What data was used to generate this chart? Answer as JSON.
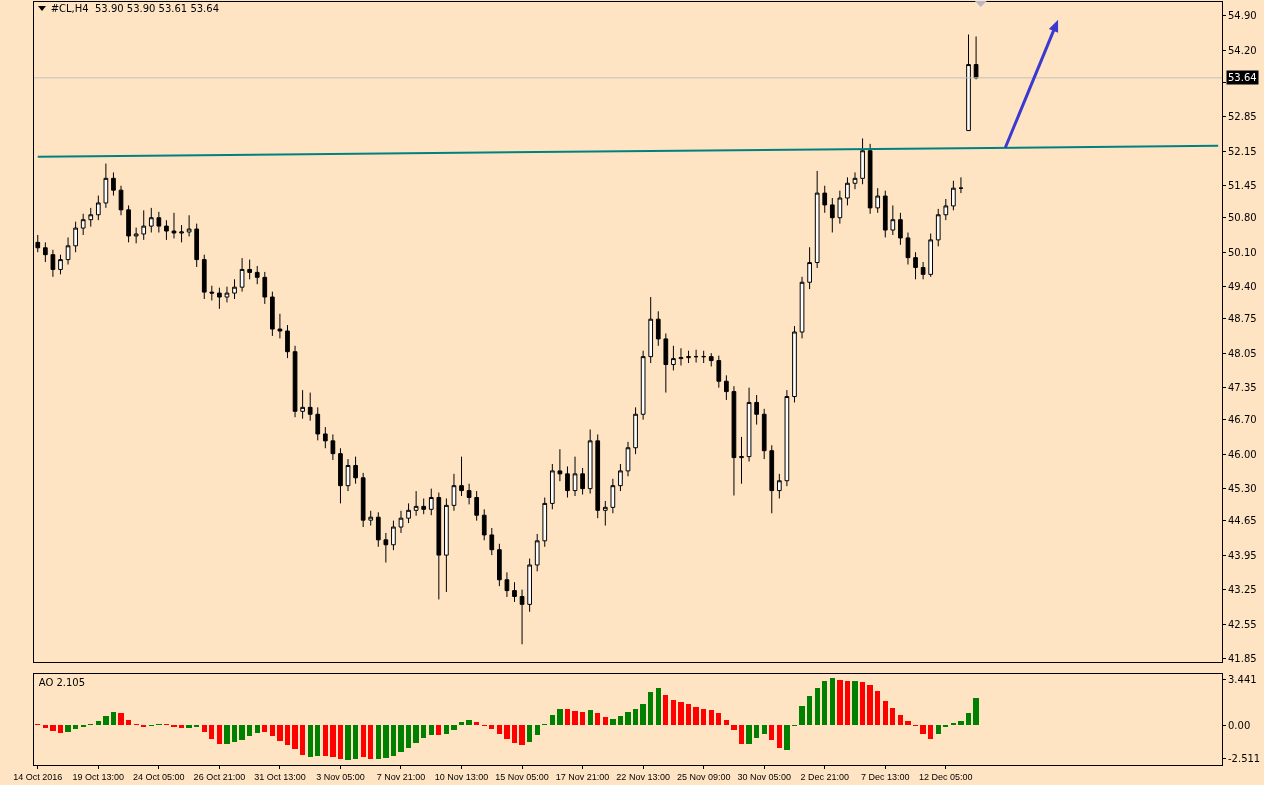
{
  "chart_data": [
    {
      "type": "candlestick",
      "title": "#CL,H4  53.90 53.90 53.61 53.64",
      "tick_labels": "y",
      "categories": [
        null,
        null,
        null,
        null,
        null,
        null,
        null,
        null,
        null,
        null,
        null,
        null,
        null,
        null,
        null,
        null,
        null,
        null,
        null,
        null,
        null,
        null,
        null,
        null,
        null,
        null,
        null,
        null,
        null,
        null,
        null,
        null,
        null,
        null,
        null,
        null,
        null,
        null,
        null,
        null,
        null,
        null,
        null,
        null,
        null,
        null,
        null,
        null,
        null,
        null,
        null,
        null,
        null,
        null,
        null,
        null,
        null,
        null,
        null,
        null,
        null,
        null,
        null,
        null,
        null,
        null,
        null,
        null,
        null,
        null,
        null,
        null,
        null,
        null,
        null,
        null,
        null,
        null,
        null,
        null,
        null,
        null,
        null,
        null,
        null,
        null,
        null,
        null,
        null,
        null,
        null,
        null,
        null,
        null,
        null,
        null,
        null,
        null,
        null,
        null,
        null,
        null,
        null,
        null,
        null,
        null,
        null,
        null,
        null,
        null,
        null,
        null,
        null,
        null,
        null,
        null,
        null,
        null,
        null,
        null,
        null,
        null,
        null,
        null,
        null,
        null,
        null,
        null,
        null,
        null,
        null,
        null,
        null,
        null,
        null,
        null,
        null,
        null,
        null,
        null,
        null,
        null,
        null,
        null,
        null,
        null,
        null,
        null,
        null,
        null,
        null,
        null,
        null,
        null,
        null,
        null,
        null
      ],
      "ohlc": [
        [
          50.3,
          50.45,
          50.1,
          50.19
        ],
        [
          50.19,
          50.3,
          49.9,
          50.05
        ],
        [
          50.05,
          50.15,
          49.6,
          49.75
        ],
        [
          49.75,
          50.05,
          49.65,
          49.95
        ],
        [
          49.95,
          50.4,
          49.85,
          50.23
        ],
        [
          50.23,
          50.72,
          50.1,
          50.59
        ],
        [
          50.59,
          50.88,
          50.45,
          50.76
        ],
        [
          50.76,
          51.0,
          50.62,
          50.86
        ],
        [
          50.86,
          51.25,
          50.75,
          51.1
        ],
        [
          51.1,
          51.9,
          51.0,
          51.6
        ],
        [
          51.6,
          51.72,
          51.25,
          51.36
        ],
        [
          51.36,
          51.45,
          50.85,
          50.96
        ],
        [
          50.96,
          51.05,
          50.3,
          50.43
        ],
        [
          50.43,
          50.6,
          50.28,
          50.47
        ],
        [
          50.47,
          50.95,
          50.35,
          50.63
        ],
        [
          50.63,
          51.0,
          50.5,
          50.8
        ],
        [
          50.8,
          50.92,
          50.5,
          50.63
        ],
        [
          50.63,
          50.75,
          50.35,
          50.53
        ],
        [
          50.53,
          50.9,
          50.38,
          50.49
        ],
        [
          50.49,
          50.65,
          50.3,
          50.51
        ],
        [
          50.51,
          50.85,
          50.42,
          50.57
        ],
        [
          50.57,
          50.68,
          49.8,
          49.95
        ],
        [
          49.95,
          50.05,
          49.15,
          49.29
        ],
        [
          49.29,
          49.42,
          49.12,
          49.27
        ],
        [
          49.27,
          49.38,
          48.95,
          49.19
        ],
        [
          49.19,
          49.4,
          49.08,
          49.27
        ],
        [
          49.27,
          49.55,
          49.15,
          49.39
        ],
        [
          49.39,
          49.98,
          49.3,
          49.75
        ],
        [
          49.75,
          49.95,
          49.55,
          49.69
        ],
        [
          49.69,
          49.82,
          49.45,
          49.59
        ],
        [
          49.59,
          49.7,
          49.05,
          49.19
        ],
        [
          49.19,
          49.3,
          48.4,
          48.54
        ],
        [
          48.54,
          48.85,
          48.35,
          48.5
        ],
        [
          48.5,
          48.62,
          47.95,
          48.08
        ],
        [
          48.08,
          48.2,
          46.75,
          46.87
        ],
        [
          46.87,
          47.3,
          46.72,
          46.95
        ],
        [
          46.95,
          47.25,
          46.68,
          46.81
        ],
        [
          46.81,
          46.95,
          46.28,
          46.41
        ],
        [
          46.41,
          46.55,
          46.12,
          46.27
        ],
        [
          46.27,
          46.4,
          45.88,
          46.01
        ],
        [
          46.01,
          46.12,
          45.0,
          45.36
        ],
        [
          45.36,
          45.9,
          45.25,
          45.77
        ],
        [
          45.77,
          45.95,
          45.4,
          45.52
        ],
        [
          45.52,
          45.62,
          44.52,
          44.66
        ],
        [
          44.66,
          44.85,
          44.55,
          44.72
        ],
        [
          44.72,
          44.82,
          44.12,
          44.26
        ],
        [
          44.26,
          44.4,
          43.8,
          44.16
        ],
        [
          44.16,
          44.65,
          44.05,
          44.52
        ],
        [
          44.52,
          44.85,
          44.4,
          44.7
        ],
        [
          44.7,
          45.0,
          44.6,
          44.86
        ],
        [
          44.86,
          45.25,
          44.75,
          44.94
        ],
        [
          44.94,
          45.1,
          44.78,
          44.88
        ],
        [
          44.88,
          45.3,
          44.76,
          45.12
        ],
        [
          45.12,
          45.22,
          43.05,
          43.95
        ],
        [
          43.95,
          45.1,
          43.2,
          44.96
        ],
        [
          44.96,
          45.6,
          44.85,
          45.36
        ],
        [
          45.36,
          45.95,
          45.15,
          45.26
        ],
        [
          45.26,
          45.4,
          44.98,
          45.12
        ],
        [
          45.12,
          45.25,
          44.65,
          44.76
        ],
        [
          44.76,
          44.88,
          44.25,
          44.36
        ],
        [
          44.36,
          44.5,
          43.95,
          44.06
        ],
        [
          44.06,
          44.18,
          43.32,
          43.45
        ],
        [
          43.45,
          43.6,
          43.1,
          43.23
        ],
        [
          43.23,
          43.4,
          43.0,
          43.11
        ],
        [
          43.11,
          43.25,
          42.14,
          42.95
        ],
        [
          42.95,
          43.88,
          42.8,
          43.75
        ],
        [
          43.75,
          44.38,
          43.62,
          44.24
        ],
        [
          44.24,
          45.12,
          44.12,
          45.0
        ],
        [
          45.0,
          45.8,
          44.88,
          45.66
        ],
        [
          45.66,
          46.1,
          45.45,
          45.6
        ],
        [
          45.6,
          45.75,
          45.12,
          45.26
        ],
        [
          45.26,
          45.95,
          45.15,
          45.6
        ],
        [
          45.6,
          45.72,
          45.18,
          45.3
        ],
        [
          45.3,
          46.5,
          45.2,
          46.27
        ],
        [
          46.27,
          46.4,
          44.7,
          44.86
        ],
        [
          44.86,
          45.05,
          44.55,
          44.92
        ],
        [
          44.92,
          45.5,
          44.8,
          45.36
        ],
        [
          45.36,
          45.8,
          45.25,
          45.66
        ],
        [
          45.66,
          46.25,
          45.55,
          46.13
        ],
        [
          46.13,
          46.95,
          46.0,
          46.81
        ],
        [
          46.81,
          48.1,
          46.7,
          47.98
        ],
        [
          47.98,
          49.19,
          47.85,
          48.74
        ],
        [
          48.74,
          48.9,
          48.2,
          48.34
        ],
        [
          48.34,
          48.45,
          47.25,
          47.82
        ],
        [
          47.82,
          48.2,
          47.7,
          47.94
        ],
        [
          47.94,
          48.15,
          47.8,
          47.96
        ],
        [
          47.96,
          48.1,
          47.85,
          47.98
        ],
        [
          47.98,
          48.12,
          47.86,
          47.98
        ],
        [
          47.98,
          48.1,
          47.85,
          47.98
        ],
        [
          47.98,
          48.05,
          47.78,
          47.9
        ],
        [
          47.9,
          48.0,
          47.35,
          47.48
        ],
        [
          47.48,
          47.6,
          47.1,
          47.27
        ],
        [
          47.27,
          47.38,
          45.16,
          45.93
        ],
        [
          45.93,
          46.35,
          45.4,
          45.95
        ],
        [
          45.95,
          47.35,
          45.85,
          47.05
        ],
        [
          47.05,
          47.2,
          46.6,
          46.81
        ],
        [
          46.81,
          46.92,
          45.9,
          46.07
        ],
        [
          46.07,
          46.18,
          44.8,
          45.26
        ],
        [
          45.26,
          45.6,
          45.1,
          45.46
        ],
        [
          45.46,
          47.3,
          45.35,
          47.17
        ],
        [
          47.17,
          48.6,
          47.05,
          48.48
        ],
        [
          48.48,
          49.6,
          48.35,
          49.49
        ],
        [
          49.49,
          50.2,
          49.35,
          49.89
        ],
        [
          49.89,
          51.75,
          49.78,
          51.3
        ],
        [
          51.3,
          51.45,
          50.9,
          51.06
        ],
        [
          51.06,
          51.2,
          50.5,
          50.8
        ],
        [
          50.8,
          51.35,
          50.68,
          51.2
        ],
        [
          51.2,
          51.62,
          51.05,
          51.5
        ],
        [
          51.5,
          51.72,
          51.38,
          51.6
        ],
        [
          51.6,
          52.41,
          51.48,
          52.16
        ],
        [
          52.16,
          52.3,
          50.88,
          51.0
        ],
        [
          51.0,
          51.4,
          50.9,
          51.24
        ],
        [
          51.24,
          51.35,
          50.4,
          50.55
        ],
        [
          50.55,
          51.05,
          50.45,
          50.76
        ],
        [
          50.76,
          50.9,
          50.25,
          50.39
        ],
        [
          50.39,
          50.5,
          49.85,
          49.99
        ],
        [
          49.99,
          50.1,
          49.55,
          49.79
        ],
        [
          49.79,
          49.9,
          49.55,
          49.65
        ],
        [
          49.65,
          50.48,
          49.6,
          50.35
        ],
        [
          50.35,
          50.98,
          50.22,
          50.86
        ],
        [
          50.86,
          51.18,
          50.75,
          51.04
        ],
        [
          51.04,
          51.55,
          50.95,
          51.4
        ],
        [
          51.4,
          51.62,
          51.3,
          51.4
        ],
        [
          52.57,
          54.52,
          52.57,
          53.91
        ],
        [
          53.91,
          54.48,
          53.61,
          53.64
        ],
        null,
        null,
        null,
        null,
        null,
        null,
        null,
        null,
        null,
        null,
        null,
        null,
        null,
        null,
        null,
        null,
        null,
        null,
        null,
        null,
        null,
        null,
        null,
        null,
        null,
        null,
        null,
        null,
        null,
        null,
        null,
        null
      ],
      "series": [
        {
          "type": "line",
          "color": "#008080",
          "values": [
            52.04,
            null,
            null,
            null,
            null,
            null,
            null,
            null,
            null,
            null,
            null,
            null,
            null,
            null,
            null,
            null,
            null,
            null,
            null,
            null,
            null,
            null,
            null,
            null,
            null,
            null,
            null,
            null,
            null,
            null,
            null,
            null,
            null,
            null,
            null,
            null,
            null,
            null,
            null,
            null,
            null,
            null,
            null,
            null,
            null,
            null,
            null,
            null,
            null,
            null,
            null,
            null,
            null,
            null,
            null,
            null,
            null,
            null,
            null,
            null,
            null,
            null,
            null,
            null,
            null,
            null,
            null,
            null,
            null,
            null,
            null,
            null,
            null,
            null,
            null,
            null,
            null,
            null,
            null,
            null,
            null,
            null,
            null,
            null,
            null,
            null,
            null,
            null,
            null,
            null,
            null,
            null,
            null,
            null,
            null,
            null,
            null,
            null,
            null,
            null,
            null,
            null,
            null,
            null,
            null,
            null,
            null,
            null,
            null,
            null,
            null,
            null,
            null,
            null,
            null,
            null,
            null,
            null,
            null,
            null,
            null,
            null,
            null,
            null,
            null,
            null,
            null,
            null,
            null,
            null,
            null,
            null,
            null,
            null,
            null,
            null,
            null,
            null,
            null,
            null,
            null,
            null,
            null,
            null,
            null,
            null,
            null,
            null,
            null,
            null,
            null,
            null,
            null,
            null,
            null,
            null,
            52.26
          ]
        }
      ],
      "ylim": [
        41.78,
        55.18
      ],
      "yticks": [
        {
          "value": 54.9,
          "label": "54.90"
        },
        {
          "value": 54.2,
          "label": "54.20"
        },
        {
          "value": 53.55,
          "label": null
        },
        {
          "value": 52.85,
          "label": "52.85"
        },
        {
          "value": 52.15,
          "label": "52.15"
        },
        {
          "value": 51.45,
          "label": "51.45"
        },
        {
          "value": 50.8,
          "label": "50.80"
        },
        {
          "value": 50.1,
          "label": "50.10"
        },
        {
          "value": 49.4,
          "label": "49.40"
        },
        {
          "value": 48.75,
          "label": "48.75"
        },
        {
          "value": 48.05,
          "label": "48.05"
        },
        {
          "value": 47.35,
          "label": "47.35"
        },
        {
          "value": 46.7,
          "label": "46.70"
        },
        {
          "value": 46.0,
          "label": "46.00"
        },
        {
          "value": 45.3,
          "label": "45.30"
        },
        {
          "value": 44.65,
          "label": "44.65"
        },
        {
          "value": 43.95,
          "label": "43.95"
        },
        {
          "value": 43.25,
          "label": "43.25"
        },
        {
          "value": 42.55,
          "label": "42.55"
        },
        {
          "value": 41.85,
          "label": "41.85"
        }
      ],
      "ref_lines": [
        {
          "axis": "y",
          "value": 53.64,
          "label": "53.64",
          "color": "#c0c0c0"
        }
      ]
    },
    {
      "type": "bar",
      "title": "AO 2.105",
      "categories": [
        "14 Oct 2016",
        null,
        null,
        null,
        null,
        null,
        null,
        null,
        "19 Oct 13:00",
        null,
        null,
        null,
        null,
        null,
        null,
        null,
        "24 Oct 05:00",
        null,
        null,
        null,
        null,
        null,
        null,
        null,
        "26 Oct 21:00",
        null,
        null,
        null,
        null,
        null,
        null,
        null,
        "31 Oct 13:00",
        null,
        null,
        null,
        null,
        null,
        null,
        null,
        "3 Nov 05:00",
        null,
        null,
        null,
        null,
        null,
        null,
        null,
        "7 Nov 21:00",
        null,
        null,
        null,
        null,
        null,
        null,
        null,
        "10 Nov 13:00",
        null,
        null,
        null,
        null,
        null,
        null,
        null,
        "15 Nov 05:00",
        null,
        null,
        null,
        null,
        null,
        null,
        null,
        "17 Nov 21:00",
        null,
        null,
        null,
        null,
        null,
        null,
        null,
        "22 Nov 13:00",
        null,
        null,
        null,
        null,
        null,
        null,
        null,
        "25 Nov 09:00",
        null,
        null,
        null,
        null,
        null,
        null,
        null,
        "30 Nov 05:00",
        null,
        null,
        null,
        null,
        null,
        null,
        null,
        "2 Dec 21:00",
        null,
        null,
        null,
        null,
        null,
        null,
        null,
        "7 Dec 13:00",
        null,
        null,
        null,
        null,
        null,
        null,
        null,
        "12 Dec 05:00",
        null,
        null,
        null,
        null,
        null,
        null,
        null,
        null,
        null,
        null,
        null,
        null,
        null,
        null,
        null,
        null,
        null,
        null,
        null,
        null,
        null,
        null,
        null,
        null,
        null,
        null,
        null,
        null,
        null,
        null,
        null,
        null,
        null,
        null,
        null,
        null
      ],
      "values": [
        0.09,
        -0.21,
        -0.45,
        -0.61,
        -0.52,
        -0.3,
        -0.15,
        0.09,
        0.3,
        0.7,
        1.0,
        0.91,
        0.39,
        0.06,
        -0.12,
        -0.03,
        0.09,
        0.06,
        -0.12,
        -0.24,
        -0.21,
        -0.15,
        -0.52,
        -1.06,
        -1.42,
        -1.42,
        -1.3,
        -1.12,
        -0.82,
        -0.58,
        -0.52,
        -0.82,
        -1.18,
        -1.48,
        -1.82,
        -2.24,
        -2.39,
        -2.33,
        -2.36,
        -2.42,
        -2.55,
        -2.61,
        -2.55,
        -2.45,
        -2.58,
        -2.58,
        -2.52,
        -2.33,
        -2.03,
        -1.73,
        -1.36,
        -0.97,
        -0.76,
        -0.76,
        -0.67,
        -0.36,
        0.21,
        0.39,
        0.21,
        -0.06,
        -0.3,
        -0.67,
        -1.06,
        -1.36,
        -1.48,
        -1.27,
        -0.73,
        0.09,
        0.76,
        1.21,
        1.21,
        1.09,
        1.0,
        1.12,
        0.94,
        0.61,
        0.48,
        0.7,
        0.97,
        1.24,
        1.61,
        2.51,
        2.82,
        2.32,
        1.95,
        1.76,
        1.58,
        1.39,
        1.27,
        1.15,
        0.93,
        0.4,
        -0.37,
        -1.39,
        -1.39,
        -0.96,
        -0.68,
        -1.15,
        -1.76,
        -1.9,
        -0.06,
        1.49,
        2.2,
        2.82,
        3.34,
        3.56,
        3.44,
        3.37,
        3.37,
        3.31,
        3.03,
        2.57,
        1.86,
        1.33,
        0.77,
        0.34,
        -0.09,
        -0.68,
        -1.05,
        -0.68,
        -0.15,
        0.19,
        0.34,
        0.93,
        2.105,
        null,
        null,
        null,
        null,
        null,
        null,
        null,
        null,
        null,
        null,
        null,
        null,
        null,
        null,
        null,
        null,
        null,
        null,
        null,
        null,
        null,
        null,
        null,
        null,
        null,
        null,
        null,
        null,
        null,
        null,
        null,
        null
      ],
      "colors": [
        "#ff0000",
        "#ff0000",
        "#ff0000",
        "#ff0000",
        "#008000",
        "#008000",
        "#008000",
        "#008000",
        "#008000",
        "#008000",
        "#008000",
        "#ff0000",
        "#ff0000",
        "#ff0000",
        "#ff0000",
        "#008000",
        "#008000",
        "#ff0000",
        "#ff0000",
        "#ff0000",
        "#008000",
        "#008000",
        "#ff0000",
        "#ff0000",
        "#ff0000",
        "#008000",
        "#008000",
        "#008000",
        "#008000",
        "#008000",
        "#ff0000",
        "#ff0000",
        "#ff0000",
        "#ff0000",
        "#ff0000",
        "#ff0000",
        "#008000",
        "#008000",
        "#ff0000",
        "#ff0000",
        "#ff0000",
        "#008000",
        "#008000",
        "#ff0000",
        "#ff0000",
        "#008000",
        "#008000",
        "#008000",
        "#008000",
        "#008000",
        "#008000",
        "#008000",
        "#008000",
        "#ff0000",
        "#008000",
        "#008000",
        "#008000",
        "#008000",
        "#ff0000",
        "#ff0000",
        "#ff0000",
        "#ff0000",
        "#ff0000",
        "#ff0000",
        "#ff0000",
        "#008000",
        "#008000",
        "#008000",
        "#008000",
        "#008000",
        "#ff0000",
        "#ff0000",
        "#ff0000",
        "#008000",
        "#ff0000",
        "#ff0000",
        "#008000",
        "#008000",
        "#008000",
        "#008000",
        "#008000",
        "#008000",
        "#008000",
        "#ff0000",
        "#ff0000",
        "#ff0000",
        "#ff0000",
        "#ff0000",
        "#ff0000",
        "#ff0000",
        "#ff0000",
        "#ff0000",
        "#ff0000",
        "#ff0000",
        "#008000",
        "#008000",
        "#008000",
        "#ff0000",
        "#ff0000",
        "#008000",
        "#008000",
        "#008000",
        "#008000",
        "#008000",
        "#008000",
        "#008000",
        "#ff0000",
        "#ff0000",
        "#008000",
        "#ff0000",
        "#ff0000",
        "#ff0000",
        "#ff0000",
        "#ff0000",
        "#ff0000",
        "#ff0000",
        "#ff0000",
        "#ff0000",
        "#ff0000",
        "#008000",
        "#008000",
        "#008000",
        "#008000",
        "#008000",
        "#008000",
        null,
        null,
        null,
        null,
        null,
        null,
        null,
        null,
        null,
        null,
        null,
        null,
        null,
        null,
        null,
        null,
        null,
        null,
        null,
        null,
        null,
        null,
        null,
        null,
        null,
        null,
        null,
        null,
        null,
        null,
        null,
        null
      ],
      "ylim": [
        -3.02,
        3.89
      ],
      "yticks": [
        {
          "value": 3.441,
          "label": "3.441"
        },
        {
          "value": 0,
          "label": "0.00"
        },
        {
          "value": -2.511,
          "label": "-2.511"
        }
      ]
    }
  ]
}
